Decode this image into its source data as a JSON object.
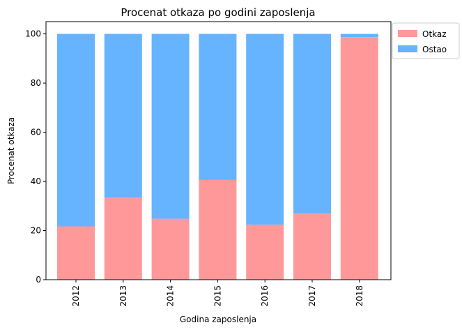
{
  "chart_data": {
    "type": "bar",
    "stacked": true,
    "title": "Procenat otkaza po godini zaposlenja",
    "xlabel": "Godina zaposlenja",
    "ylabel": "Procenat otkaza",
    "categories": [
      "2012",
      "2013",
      "2014",
      "2015",
      "2016",
      "2017",
      "2018"
    ],
    "series": [
      {
        "name": "Otkaz",
        "color": "#ff9999",
        "values": [
          21.7,
          33.3,
          24.8,
          40.6,
          22.4,
          26.9,
          98.7
        ]
      },
      {
        "name": "Ostao",
        "color": "#66b3ff",
        "values": [
          78.3,
          66.7,
          75.2,
          59.4,
          77.6,
          73.1,
          1.3
        ]
      }
    ],
    "ylim": [
      0,
      105
    ],
    "yticks": [
      0,
      20,
      40,
      60,
      80,
      100
    ],
    "legend": "top-right-outside",
    "grid": false
  }
}
